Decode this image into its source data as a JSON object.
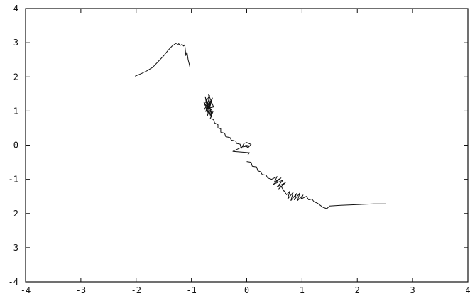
{
  "chart_data": {
    "type": "line",
    "title": "",
    "xlabel": "",
    "ylabel": "",
    "xlim": [
      -4,
      4
    ],
    "ylim": [
      -4,
      4
    ],
    "grid": false,
    "legend": "none",
    "line_color": "#111111",
    "x_ticks": [
      -4,
      -3,
      -2,
      -1,
      0,
      1,
      2,
      3,
      4
    ],
    "y_ticks": [
      -4,
      -3,
      -2,
      -1,
      0,
      1,
      2,
      3,
      4
    ],
    "x_tick_labels": [
      "-4",
      "-3",
      "-2",
      "-1",
      "0",
      "1",
      "2",
      "3",
      "4"
    ],
    "y_tick_labels": [
      "-4",
      "-3",
      "-2",
      "-1",
      "0",
      "1",
      "2",
      "3",
      "4"
    ],
    "series": [
      {
        "values": [
          [
            -2.02,
            2.02
          ],
          [
            -1.9,
            2.1
          ],
          [
            -1.8,
            2.18
          ],
          [
            -1.7,
            2.28
          ],
          [
            -1.6,
            2.45
          ],
          [
            -1.5,
            2.62
          ],
          [
            -1.42,
            2.78
          ],
          [
            -1.35,
            2.9
          ],
          [
            -1.3,
            2.96
          ],
          [
            -1.27,
            2.99
          ],
          [
            -1.25,
            2.93
          ],
          [
            -1.23,
            2.97
          ],
          [
            -1.2,
            2.92
          ],
          [
            -1.17,
            2.95
          ],
          [
            -1.14,
            2.9
          ],
          [
            -1.12,
            2.94
          ],
          [
            -1.1,
            2.62
          ],
          [
            -1.08,
            2.73
          ],
          [
            -1.06,
            2.5
          ],
          [
            -1.04,
            2.38
          ],
          [
            -1.03,
            2.3
          ]
        ]
      },
      {
        "values": [
          [
            -0.78,
            1.28
          ],
          [
            -0.7,
            0.95
          ],
          [
            -0.75,
            1.42
          ],
          [
            -0.66,
            0.88
          ],
          [
            -0.73,
            1.35
          ],
          [
            -0.63,
            0.92
          ],
          [
            -0.76,
            1.22
          ],
          [
            -0.67,
            1.45
          ],
          [
            -0.74,
            0.98
          ],
          [
            -0.62,
            1.38
          ],
          [
            -0.71,
            0.86
          ],
          [
            -0.65,
            1.3
          ],
          [
            -0.77,
            1.05
          ],
          [
            -0.6,
            1.12
          ],
          [
            -0.69,
            1.48
          ],
          [
            -0.64,
            0.82
          ],
          [
            -0.72,
            1.18
          ],
          [
            -0.61,
            0.98
          ],
          [
            -0.66,
            0.78
          ],
          [
            -0.6,
            0.75
          ],
          [
            -0.58,
            0.65
          ],
          [
            -0.52,
            0.6
          ],
          [
            -0.52,
            0.5
          ],
          [
            -0.47,
            0.48
          ],
          [
            -0.47,
            0.38
          ],
          [
            -0.4,
            0.35
          ],
          [
            -0.38,
            0.25
          ],
          [
            -0.3,
            0.22
          ],
          [
            -0.28,
            0.15
          ],
          [
            -0.2,
            0.12
          ],
          [
            -0.18,
            0.05
          ],
          [
            -0.12,
            0.03
          ],
          [
            -0.1,
            -0.1
          ],
          [
            -0.05,
            0.05
          ],
          [
            0.0,
            0.08
          ],
          [
            0.08,
            0.02
          ],
          [
            0.02,
            -0.08
          ],
          [
            -0.02,
            0.0
          ],
          [
            0.05,
            -0.02
          ],
          [
            -0.08,
            -0.05
          ],
          [
            -0.25,
            -0.18
          ],
          [
            0.05,
            -0.22
          ],
          [
            0.02,
            -0.28
          ]
        ]
      },
      {
        "values": [
          [
            0.0,
            -0.48
          ],
          [
            0.08,
            -0.5
          ],
          [
            0.1,
            -0.62
          ],
          [
            0.18,
            -0.64
          ],
          [
            0.2,
            -0.75
          ],
          [
            0.25,
            -0.78
          ],
          [
            0.28,
            -0.86
          ],
          [
            0.35,
            -0.88
          ],
          [
            0.38,
            -0.96
          ],
          [
            0.45,
            -1.0
          ],
          [
            0.55,
            -0.92
          ],
          [
            0.5,
            -1.08
          ],
          [
            0.62,
            -0.96
          ],
          [
            0.48,
            -1.15
          ],
          [
            0.66,
            -1.02
          ],
          [
            0.55,
            -1.22
          ],
          [
            0.7,
            -1.1
          ],
          [
            0.58,
            -1.28
          ],
          [
            0.62,
            -1.2
          ],
          [
            0.68,
            -1.36
          ],
          [
            0.66,
            -1.3
          ],
          [
            0.72,
            -1.45
          ],
          [
            0.78,
            -1.35
          ],
          [
            0.74,
            -1.58
          ],
          [
            0.84,
            -1.38
          ],
          [
            0.8,
            -1.62
          ],
          [
            0.9,
            -1.42
          ],
          [
            0.86,
            -1.6
          ],
          [
            0.96,
            -1.4
          ],
          [
            0.92,
            -1.62
          ],
          [
            1.02,
            -1.46
          ],
          [
            0.98,
            -1.58
          ],
          [
            1.08,
            -1.5
          ],
          [
            1.12,
            -1.6
          ],
          [
            1.18,
            -1.58
          ],
          [
            1.22,
            -1.66
          ],
          [
            1.28,
            -1.7
          ],
          [
            1.32,
            -1.75
          ],
          [
            1.38,
            -1.82
          ],
          [
            1.45,
            -1.86
          ],
          [
            1.5,
            -1.78
          ],
          [
            1.7,
            -1.76
          ],
          [
            2.0,
            -1.74
          ],
          [
            2.3,
            -1.72
          ],
          [
            2.52,
            -1.72
          ]
        ]
      }
    ]
  }
}
